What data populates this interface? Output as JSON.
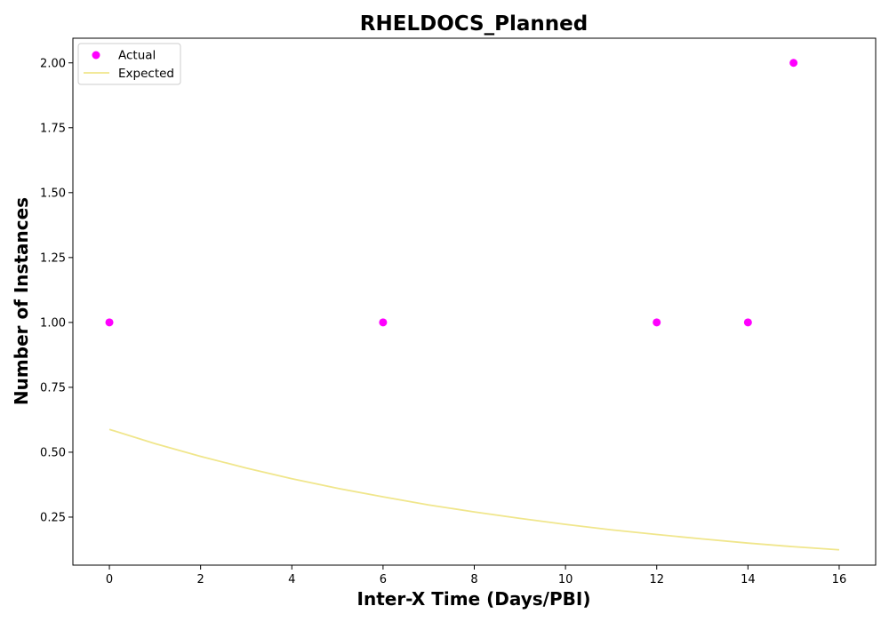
{
  "chart_data": {
    "type": "scatter",
    "title": "RHELDOCS_Planned",
    "xlabel": "Inter-X Time (Days/PBI)",
    "ylabel": "Number of Instances",
    "xlim": [
      -0.8,
      16.8
    ],
    "ylim": [
      0.065,
      2.095
    ],
    "xticks": [
      0,
      2,
      4,
      6,
      8,
      10,
      12,
      14,
      16
    ],
    "xtick_labels": [
      "0",
      "2",
      "4",
      "6",
      "8",
      "10",
      "12",
      "14",
      "16"
    ],
    "yticks": [
      0.25,
      0.5,
      0.75,
      1.0,
      1.25,
      1.5,
      1.75,
      2.0
    ],
    "ytick_labels": [
      "0.25",
      "0.50",
      "0.75",
      "1.00",
      "1.25",
      "1.50",
      "1.75",
      "2.00"
    ],
    "grid": false,
    "legend_position": "top-left",
    "series": [
      {
        "name": "Actual",
        "kind": "scatter",
        "color": "#ff00ff",
        "x": [
          0,
          6,
          12,
          14,
          15
        ],
        "y": [
          1,
          1,
          1,
          1,
          2
        ]
      },
      {
        "name": "Expected",
        "kind": "line",
        "color": "#f0e68c",
        "x": [
          0,
          1,
          2,
          3,
          4,
          5,
          6,
          7,
          8,
          9,
          10,
          11,
          12,
          13,
          14,
          15,
          16
        ],
        "y": [
          0.588,
          0.533,
          0.484,
          0.439,
          0.398,
          0.361,
          0.328,
          0.297,
          0.27,
          0.245,
          0.222,
          0.201,
          0.183,
          0.166,
          0.15,
          0.136,
          0.124
        ]
      }
    ]
  }
}
